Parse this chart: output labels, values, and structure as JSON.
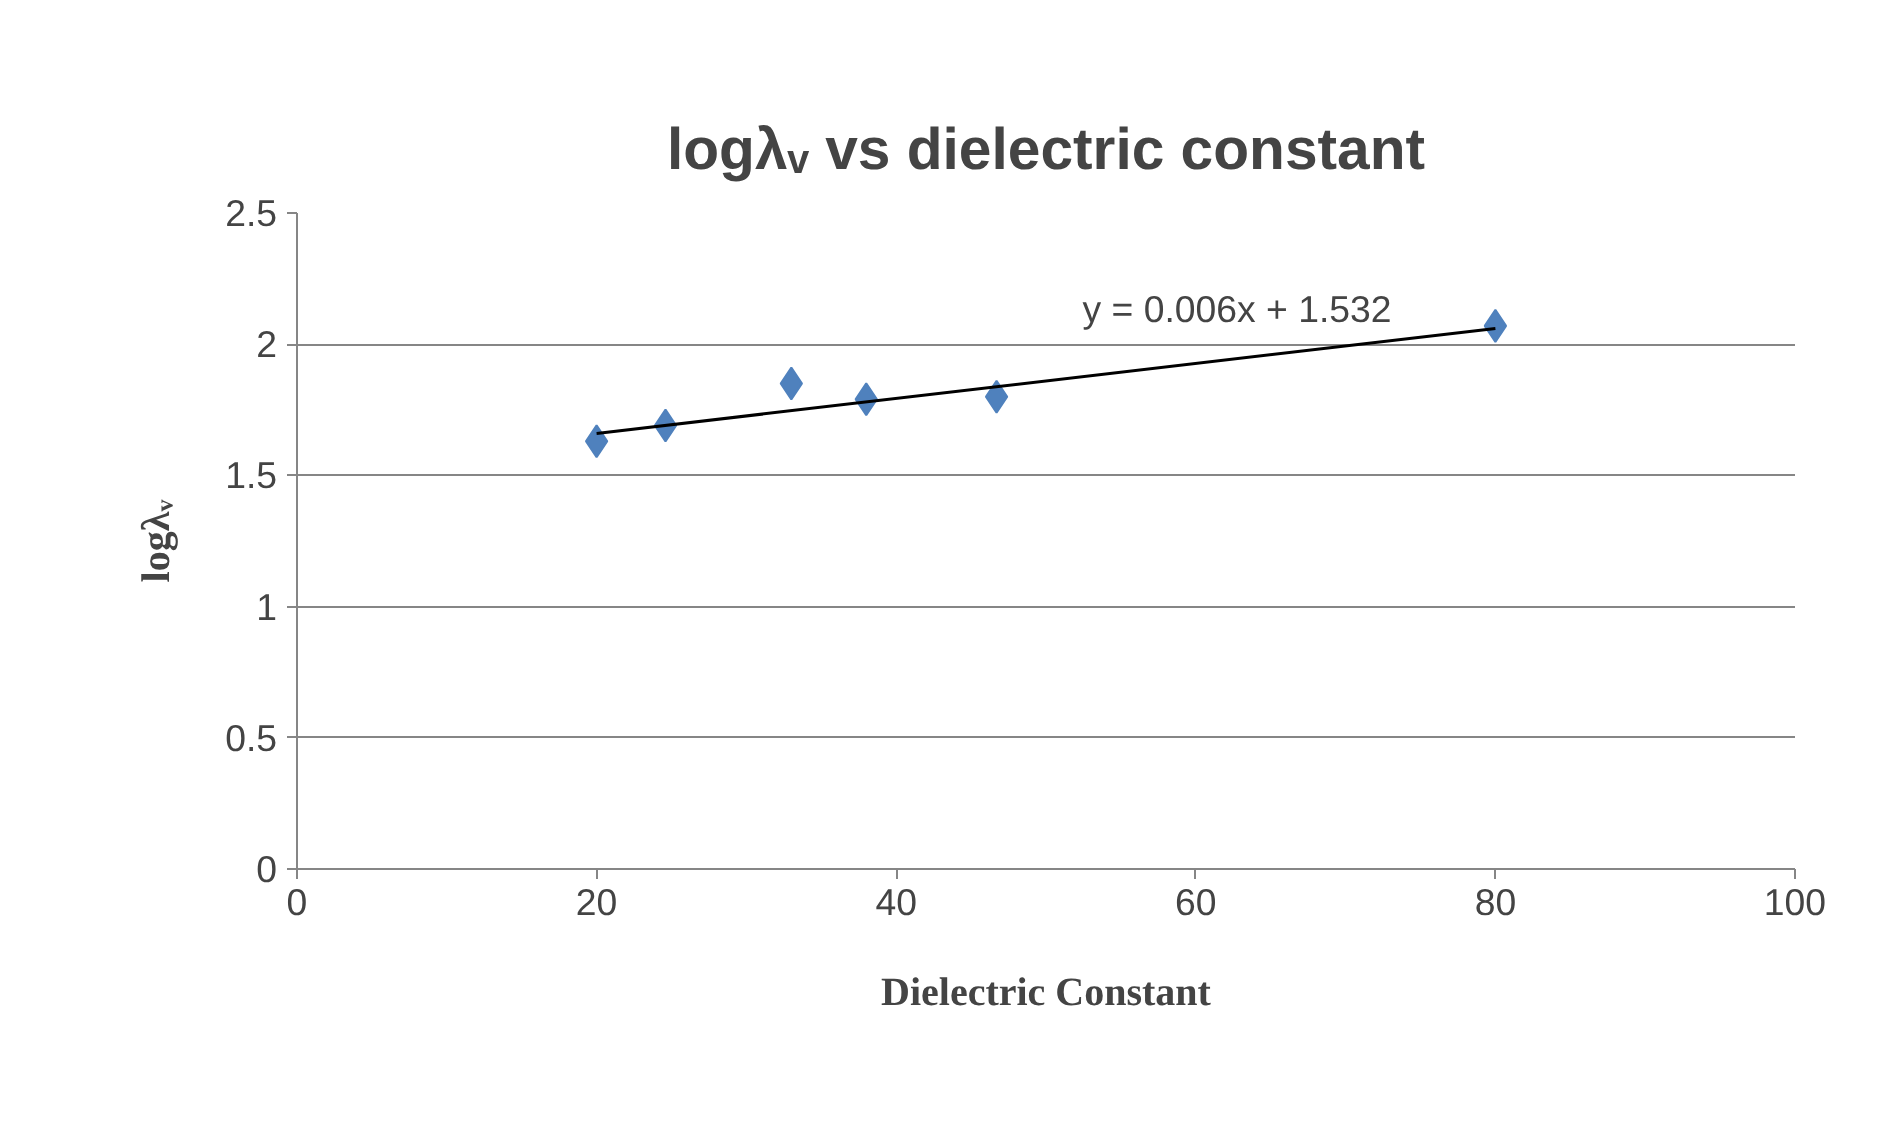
{
  "chart_data": {
    "type": "scatter",
    "title": "logλᵥ vs dielectric constant",
    "xlabel": "Dielectric Constant",
    "ylabel": "logλᵥ",
    "x": [
      20,
      24.6,
      33,
      38,
      46.7,
      80
    ],
    "series": [
      {
        "color": "#4f81bd",
        "marker": "diamond",
        "values": [
          1.63,
          1.69,
          1.85,
          1.79,
          1.8,
          2.07
        ]
      },
      {
        "type": "line",
        "color": "#000000",
        "marker": "none",
        "line_style": "solid",
        "x": [
          20,
          80
        ],
        "values": [
          1.66,
          2.06
        ]
      }
    ],
    "annotations": [
      "y = 0.006x + 1.532"
    ],
    "xlim": [
      0,
      100
    ],
    "xticks": [
      0,
      20,
      40,
      60,
      80,
      100
    ],
    "ylim": [
      0,
      2.5
    ],
    "yticks": [
      0,
      0.5,
      1,
      1.5,
      2,
      2.5
    ],
    "grid": "y"
  }
}
